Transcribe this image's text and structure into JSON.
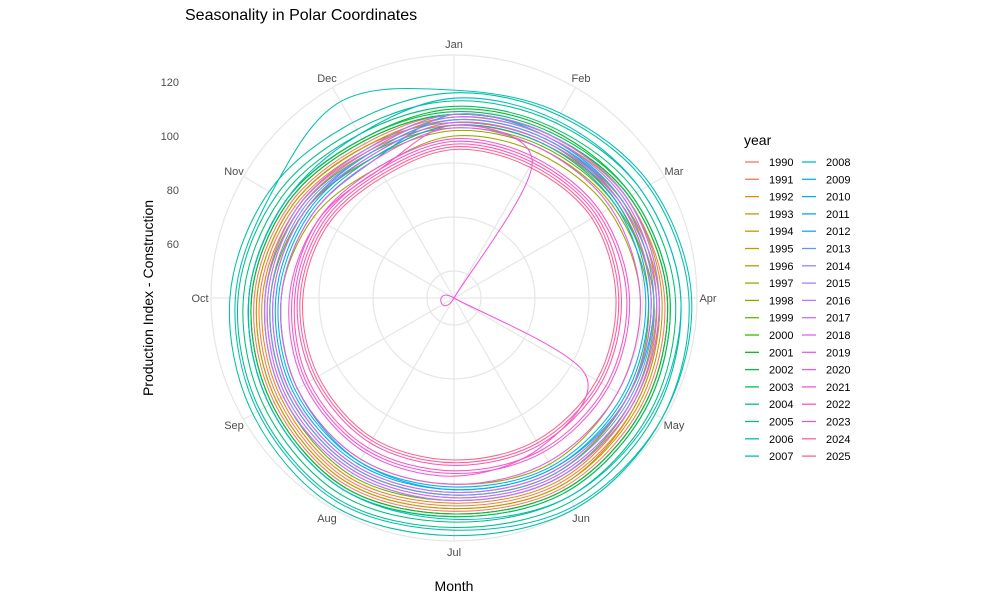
{
  "chart_data": {
    "type": "line",
    "coord": "polar",
    "title": "Seasonality in Polar Coordinates",
    "xlabel": "Month",
    "ylabel": "Production Index - Construction",
    "months": [
      "Jan",
      "Feb",
      "Mar",
      "Apr",
      "May",
      "Jun",
      "Jul",
      "Aug",
      "Sep",
      "Oct",
      "Nov",
      "Dec"
    ],
    "y_ticks": [
      60,
      80,
      100,
      120
    ],
    "ylim": [
      40,
      130
    ],
    "legend": {
      "title": "year",
      "position": "right"
    },
    "series": [
      {
        "name": "1990",
        "color": "#F8766D",
        "values": [
          108,
          110,
          114,
          118,
          120,
          121,
          119,
          120,
          117,
          114,
          110,
          106
        ]
      },
      {
        "name": "1991",
        "color": "#F07E4F",
        "values": [
          106,
          108,
          112,
          116,
          118,
          119,
          117,
          118,
          115,
          112,
          108,
          104
        ]
      },
      {
        "name": "1992",
        "color": "#E7861B",
        "values": [
          104,
          106,
          111,
          115,
          117,
          118,
          116,
          117,
          114,
          111,
          107,
          103
        ]
      },
      {
        "name": "1993",
        "color": "#DC8E00",
        "values": [
          105,
          107,
          112,
          116,
          118,
          120,
          118,
          119,
          116,
          113,
          109,
          105
        ]
      },
      {
        "name": "1994",
        "color": "#CF9400",
        "values": [
          108,
          110,
          115,
          119,
          121,
          122,
          120,
          121,
          118,
          115,
          111,
          107
        ]
      },
      {
        "name": "1995",
        "color": "#C09B00",
        "values": [
          107,
          109,
          114,
          117,
          119,
          120,
          118,
          119,
          116,
          113,
          109,
          105
        ]
      },
      {
        "name": "1996",
        "color": "#B0A100",
        "values": [
          104,
          106,
          110,
          113,
          114,
          115,
          113,
          113,
          111,
          108,
          104,
          100
        ]
      },
      {
        "name": "1997",
        "color": "#9DA700",
        "values": [
          100,
          102,
          106,
          109,
          110,
          111,
          109,
          109,
          107,
          104,
          100,
          96
        ]
      },
      {
        "name": "1998",
        "color": "#87AC00",
        "values": [
          102,
          104,
          108,
          112,
          114,
          115,
          113,
          113,
          111,
          108,
          104,
          100
        ]
      },
      {
        "name": "1999",
        "color": "#6BB100",
        "values": [
          103,
          105,
          109,
          114,
          116,
          117,
          115,
          116,
          113,
          110,
          106,
          102
        ]
      },
      {
        "name": "2000",
        "color": "#3BB500",
        "values": [
          108,
          110,
          115,
          119,
          121,
          122,
          120,
          121,
          118,
          115,
          111,
          107
        ]
      },
      {
        "name": "2001",
        "color": "#00B81F",
        "values": [
          110,
          112,
          116,
          120,
          122,
          123,
          121,
          122,
          119,
          116,
          112,
          108
        ]
      },
      {
        "name": "2002",
        "color": "#00BB44",
        "values": [
          108,
          110,
          115,
          119,
          121,
          122,
          120,
          121,
          118,
          115,
          111,
          107
        ]
      },
      {
        "name": "2003",
        "color": "#00BD5F",
        "values": [
          109,
          111,
          116,
          120,
          122,
          123,
          121,
          122,
          119,
          116,
          112,
          108
        ]
      },
      {
        "name": "2004",
        "color": "#00BF77",
        "values": [
          111,
          113,
          118,
          122,
          124,
          125,
          123,
          124,
          121,
          118,
          114,
          110
        ]
      },
      {
        "name": "2005",
        "color": "#00C08D",
        "values": [
          113,
          115,
          120,
          124,
          126,
          127,
          125,
          126,
          123,
          120,
          116,
          112
        ]
      },
      {
        "name": "2006",
        "color": "#00C0A2",
        "values": [
          116,
          118,
          123,
          127,
          129,
          130,
          128,
          129,
          126,
          123,
          119,
          115
        ]
      },
      {
        "name": "2007",
        "color": "#00BFB6",
        "values": [
          117,
          119,
          124,
          128,
          129,
          129,
          126,
          127,
          124,
          121,
          118,
          124
        ]
      },
      {
        "name": "2008",
        "color": "#00BCC8",
        "values": [
          114,
          116,
          120,
          124,
          125,
          125,
          122,
          122,
          119,
          116,
          112,
          110
        ]
      },
      {
        "name": "2009",
        "color": "#00B7D9",
        "values": [
          108,
          109,
          112,
          114,
          114,
          113,
          111,
          110,
          107,
          104,
          101,
          99
        ]
      },
      {
        "name": "2010",
        "color": "#00B1E8",
        "values": [
          104,
          106,
          109,
          111,
          112,
          112,
          110,
          110,
          108,
          105,
          102,
          100
        ]
      },
      {
        "name": "2011",
        "color": "#00A8F6",
        "values": [
          105,
          107,
          110,
          112,
          113,
          113,
          111,
          111,
          109,
          106,
          103,
          101
        ]
      },
      {
        "name": "2012",
        "color": "#1E9FFF",
        "values": [
          106,
          108,
          111,
          113,
          114,
          114,
          112,
          112,
          110,
          107,
          104,
          102
        ]
      },
      {
        "name": "2013",
        "color": "#6694FF",
        "values": [
          106,
          108,
          112,
          114,
          115,
          115,
          113,
          113,
          111,
          108,
          105,
          102
        ]
      },
      {
        "name": "2014",
        "color": "#8B89FF",
        "values": [
          107,
          109,
          113,
          115,
          116,
          116,
          114,
          114,
          112,
          109,
          106,
          103
        ]
      },
      {
        "name": "2015",
        "color": "#A67FFF",
        "values": [
          108,
          110,
          114,
          116,
          117,
          117,
          115,
          115,
          113,
          110,
          107,
          104
        ]
      },
      {
        "name": "2016",
        "color": "#BB75FF",
        "values": [
          108,
          110,
          114,
          116,
          117,
          117,
          115,
          115,
          113,
          110,
          107,
          104
        ]
      },
      {
        "name": "2017",
        "color": "#CC6CFB",
        "values": [
          107,
          109,
          113,
          115,
          116,
          116,
          114,
          114,
          112,
          109,
          106,
          103
        ]
      },
      {
        "name": "2018",
        "color": "#DB63F4",
        "values": [
          105,
          107,
          111,
          113,
          114,
          114,
          112,
          112,
          110,
          107,
          104,
          101
        ]
      },
      {
        "name": "2019",
        "color": "#E75CEB",
        "values": [
          103,
          104,
          107,
          109,
          110,
          110,
          109,
          109,
          107,
          104,
          101,
          99
        ]
      },
      {
        "name": "2020",
        "color": "#F057DF",
        "values": [
          104,
          98,
          40,
          40,
          96,
          104,
          106,
          106,
          104,
          101,
          98,
          95
        ]
      },
      {
        "name": "2021",
        "color": "#F754D1",
        "values": [
          99,
          100,
          103,
          105,
          106,
          106,
          105,
          105,
          103,
          100,
          98,
          96
        ]
      },
      {
        "name": "2022",
        "color": "#FB54C1",
        "values": [
          98,
          99,
          102,
          104,
          105,
          105,
          104,
          104,
          102,
          99,
          97,
          95
        ]
      },
      {
        "name": "2023",
        "color": "#FE56B0",
        "values": [
          97,
          98,
          101,
          102,
          103,
          103,
          102,
          102,
          100,
          98,
          96,
          94
        ]
      },
      {
        "name": "2024",
        "color": "#FF5C9D",
        "values": [
          96,
          97,
          100,
          101,
          102,
          102,
          101,
          101,
          99,
          97,
          95,
          93
        ]
      },
      {
        "name": "2025",
        "color": "#FF6389",
        "values": [
          95,
          96,
          99,
          100,
          101,
          101,
          100,
          100,
          98,
          96,
          94,
          92
        ]
      }
    ]
  }
}
